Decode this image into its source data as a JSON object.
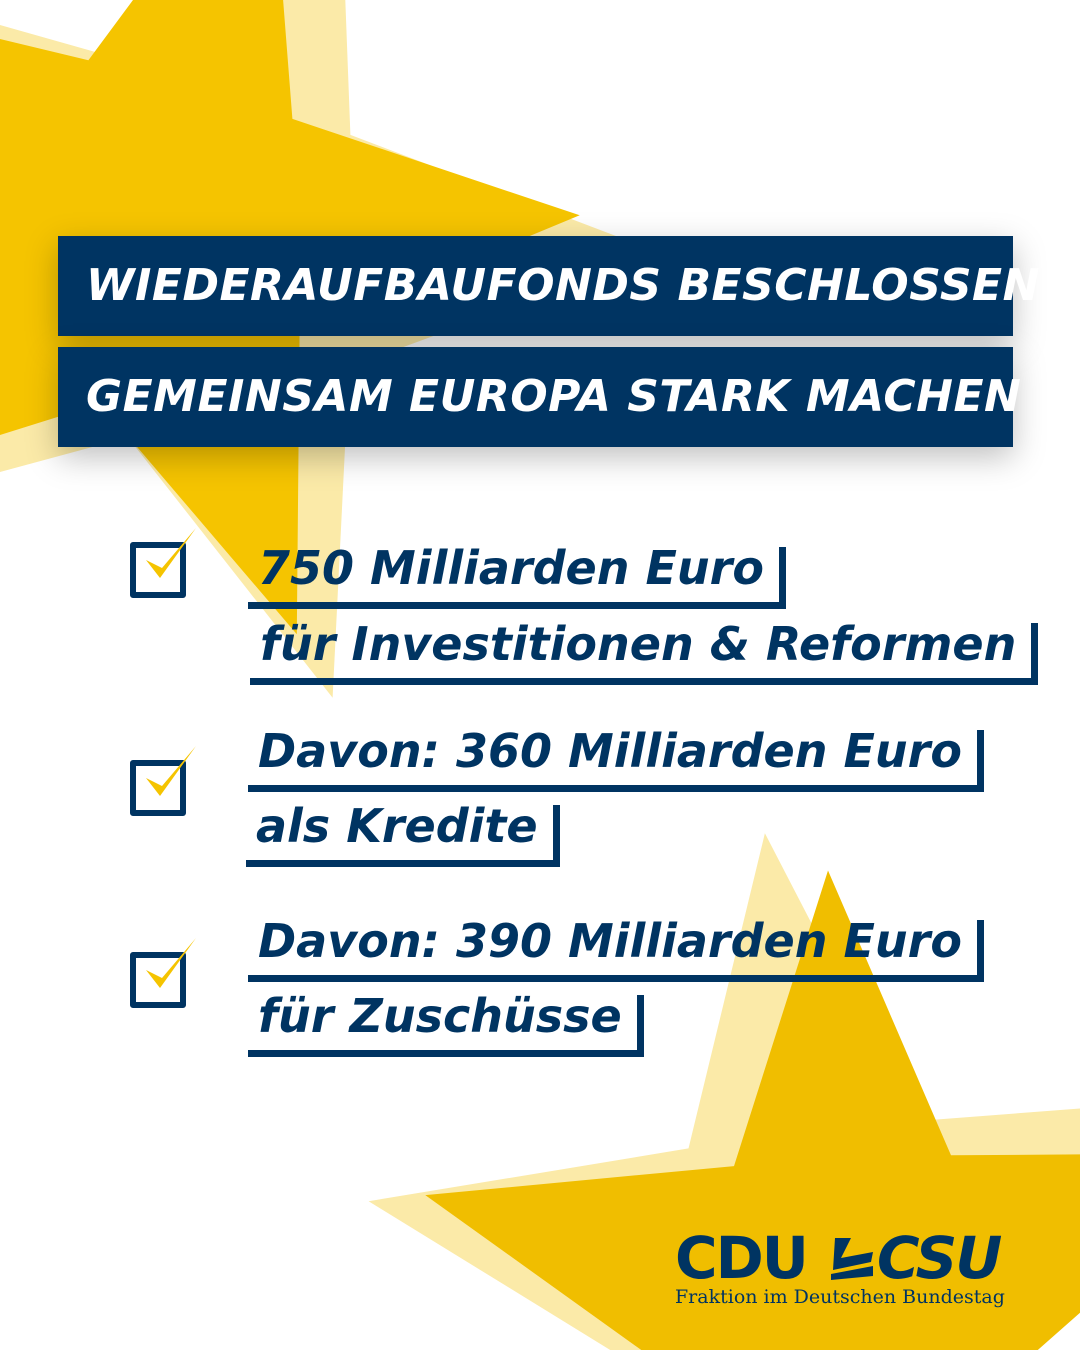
{
  "headline": {
    "line1": "WIEDERAUFBAUFONDS BESCHLOSSEN",
    "line2": "GEMEINSAM EUROPA STARK MACHEN"
  },
  "items": [
    {
      "icon": "checkbox-checked-icon",
      "lines": [
        "750 Milliarden Euro",
        "für Investitionen & Reformen"
      ]
    },
    {
      "icon": "checkbox-checked-icon",
      "lines": [
        "Davon: 360 Milliarden Euro",
        "als Kredite"
      ]
    },
    {
      "icon": "checkbox-checked-icon",
      "lines": [
        "Davon: 390 Milliarden Euro",
        "für Zuschüsse"
      ]
    }
  ],
  "logo": {
    "wordmark": "CDU CSU",
    "subtitle": "Fraktion im Deutschen Bundestag"
  },
  "colors": {
    "navy": "#003462",
    "yellow": "#F7C600",
    "pale_yellow": "#FBE9A6"
  }
}
